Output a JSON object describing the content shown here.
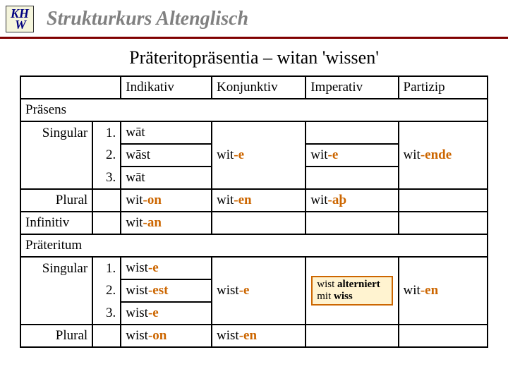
{
  "logo": {
    "line1": "KH",
    "line2": "W"
  },
  "course_title": "Strukturkurs Altenglisch",
  "page_title": "Präteritopräsentia – witan 'wissen'",
  "colors": {
    "header_rule": "#800000",
    "suffix": "#cc6600",
    "note_bg": "#fff3d0",
    "note_border": "#cc6600",
    "logo_text": "#000080",
    "logo_bg": "#f5f5dc",
    "course_title": "#808080"
  },
  "headers": {
    "indikativ": "Indikativ",
    "konjunktiv": "Konjunktiv",
    "imperativ": "Imperativ",
    "partizip": "Partizip"
  },
  "sections": {
    "prasens": "Präsens",
    "singular": "Singular",
    "plural": "Plural",
    "infinitiv": "Infinitiv",
    "prateritum": "Präteritum"
  },
  "nums": {
    "n1": "1.",
    "n2": "2.",
    "n3": "3."
  },
  "prasens": {
    "sg1": {
      "ind": "wāt"
    },
    "sg2": {
      "ind": "wāst",
      "konj_stem": "wit",
      "konj_suf": "-e",
      "imp_stem": "wit",
      "imp_suf": "-e"
    },
    "sg3": {
      "ind": "wāt"
    },
    "pl": {
      "ind_stem": "wit",
      "ind_suf": "-on",
      "konj_stem": "wit",
      "konj_suf": "-en",
      "imp_stem": "wit",
      "imp_suf": "-aþ"
    },
    "part_stem": "wit",
    "part_suf": "-ende"
  },
  "infinitiv": {
    "stem": "wit",
    "suf": "-an"
  },
  "prateritum": {
    "sg1": {
      "ind_stem": "wist",
      "ind_suf": "-e"
    },
    "sg2": {
      "ind_stem": "wist",
      "ind_suf": "-est",
      "konj_stem": "wist",
      "konj_suf": "-e"
    },
    "sg3": {
      "ind_stem": "wist",
      "ind_suf": "-e"
    },
    "pl": {
      "ind_stem": "wist",
      "ind_suf": "-on",
      "konj_stem": "wist",
      "konj_suf": "-en"
    },
    "part_stem": "wit",
    "part_suf": "-en"
  },
  "note": {
    "w1": "wist",
    "w2": "alterniert",
    "w3": "mit",
    "w4": "wiss"
  }
}
